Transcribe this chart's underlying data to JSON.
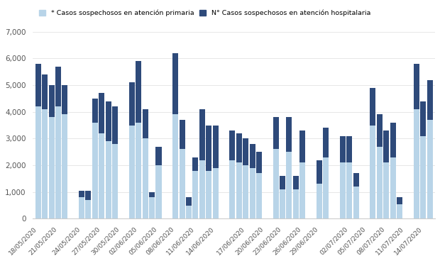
{
  "legend_label_primary": "* Casos sospechosos en atención primaria",
  "legend_label_hospital": "N° Casos sospechosos en atención hospitalaria",
  "color_primary": "#b8d4e8",
  "color_hospital": "#2e4a7a",
  "background_color": "#ffffff",
  "ylim": [
    0,
    7000
  ],
  "yticks": [
    0,
    1000,
    2000,
    3000,
    4000,
    5000,
    6000,
    7000
  ],
  "ytick_labels": [
    "0",
    "1,000",
    "2,000",
    "3,000",
    "4,000",
    "5,000",
    "6,000",
    "7,000"
  ],
  "dates": [
    "18/05/2020",
    "19/05/2020",
    "20/05/2020",
    "21/05/2020",
    "22/05/2020",
    "24/05/2020",
    "25/05/2020",
    "26/05/2020",
    "27/05/2020",
    "28/05/2020",
    "29/05/2020",
    "01/06/2020",
    "02/06/2020",
    "03/06/2020",
    "04/06/2020",
    "05/06/2020",
    "08/06/2020",
    "09/06/2020",
    "10/06/2020",
    "11/06/2020",
    "12/06/2020",
    "13/06/2020",
    "14/06/2020",
    "15/06/2020",
    "16/06/2020",
    "17/06/2020",
    "18/06/2020",
    "19/06/2020",
    "22/06/2020",
    "23/06/2020",
    "24/06/2020",
    "25/06/2020",
    "26/06/2020",
    "29/06/2020",
    "30/06/2020",
    "01/07/2020",
    "02/07/2020",
    "03/07/2020",
    "06/07/2020",
    "07/07/2020",
    "08/07/2020",
    "09/07/2020",
    "10/07/2020",
    "13/07/2020",
    "14/07/2020",
    "15/07/2020"
  ],
  "x_tick_positions_dates": [
    "18/05/2020",
    "21/05/2020",
    "24/05/2020",
    "27/05/2020",
    "30/05/2020",
    "02/06/2020",
    "05/06/2020",
    "08/06/2020",
    "11/06/2020",
    "14/06/2020",
    "17/06/2020",
    "20/06/2020",
    "23/06/2020",
    "26/06/2020",
    "29/06/2020",
    "02/07/2020",
    "05/07/2020",
    "08/07/2020",
    "11/07/2020",
    "14/07/2020"
  ],
  "primary": [
    4200,
    4100,
    3800,
    4200,
    3900,
    800,
    700,
    3600,
    3200,
    2900,
    2800,
    3500,
    3600,
    3000,
    800,
    2000,
    3900,
    2600,
    500,
    1800,
    2200,
    1800,
    1900,
    2200,
    2100,
    2000,
    1900,
    1700,
    2600,
    1100,
    2500,
    1100,
    2100,
    1300,
    2300,
    2100,
    2100,
    1200,
    3500,
    2700,
    2100,
    2300,
    550,
    4100,
    3100,
    3700
  ],
  "hospital": [
    1600,
    1300,
    1200,
    1500,
    1100,
    250,
    350,
    900,
    1500,
    1500,
    1400,
    1600,
    2300,
    1100,
    200,
    700,
    2300,
    1100,
    300,
    500,
    1900,
    1700,
    1600,
    1100,
    1100,
    1000,
    900,
    800,
    1200,
    500,
    1300,
    500,
    1200,
    900,
    1100,
    1000,
    1000,
    500,
    1400,
    1200,
    1200,
    1300,
    250,
    1700,
    1300,
    1500
  ]
}
